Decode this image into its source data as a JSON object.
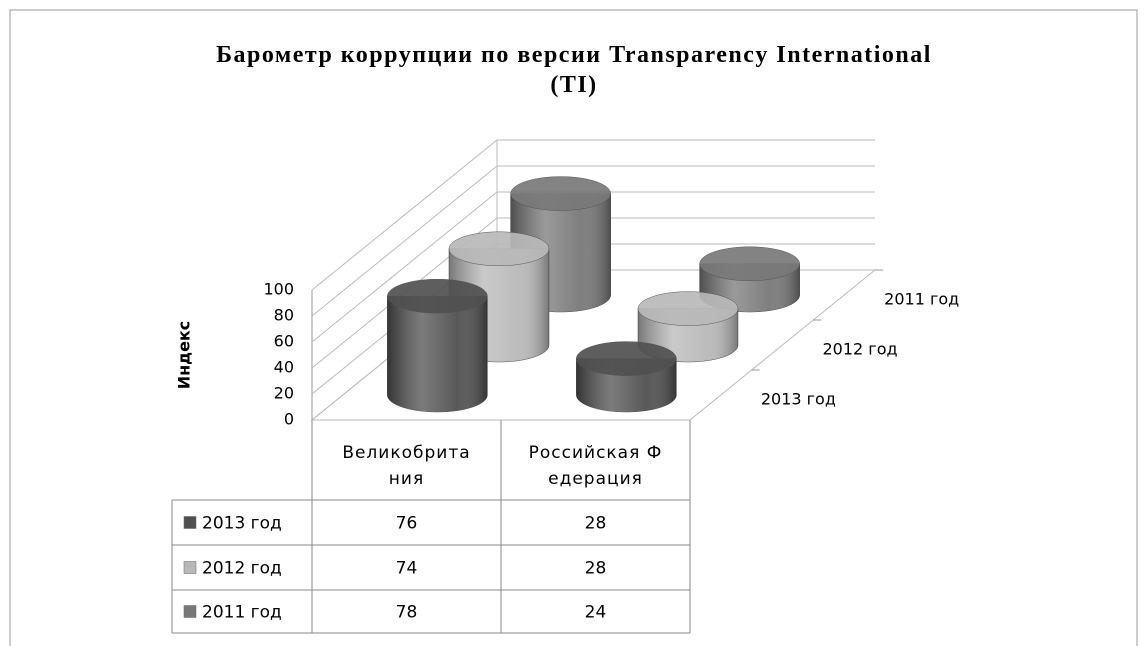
{
  "chart_data": {
    "type": "cylinder3d",
    "title": "Барометр коррупции по версии Transparency International (TI)",
    "y_label": "Индекс",
    "categories": [
      "Великобритания",
      "Российская Федерация"
    ],
    "series": [
      {
        "name": "2013 год",
        "color": "#505050",
        "values": [
          76,
          28
        ]
      },
      {
        "name": "2012 год",
        "color": "#b8b8b8",
        "values": [
          74,
          28
        ]
      },
      {
        "name": "2011 год",
        "color": "#787878",
        "values": [
          78,
          24
        ]
      }
    ],
    "ylim": [
      0,
      100
    ],
    "yticks": [
      0,
      20,
      40,
      60,
      80,
      100
    ],
    "grid": true
  }
}
